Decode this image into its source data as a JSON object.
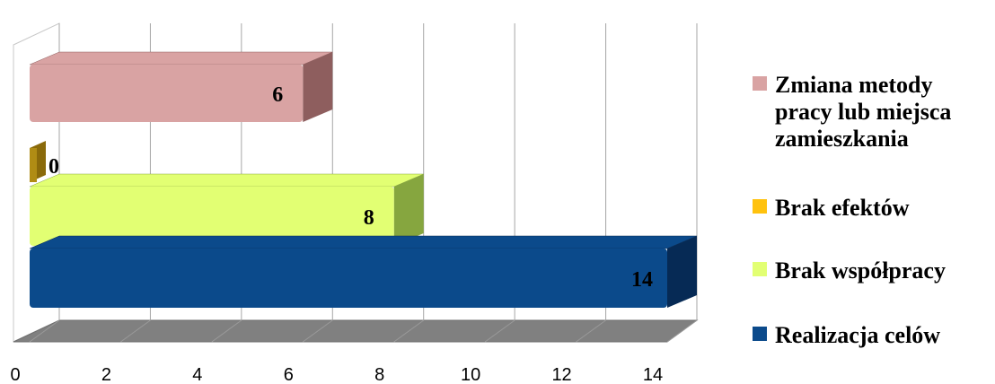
{
  "chart_data": {
    "type": "bar",
    "orientation": "horizontal",
    "style": "3d",
    "title": "",
    "xlabel": "",
    "ylabel": "",
    "xlim": [
      0,
      14
    ],
    "x_ticks": [
      "0",
      "2",
      "4",
      "6",
      "8",
      "10",
      "12",
      "14"
    ],
    "grid": true,
    "legend_position": "right",
    "series": [
      {
        "name": "Realizacja celów",
        "value": 14,
        "label": "14",
        "color": "#0B4A8B",
        "side_color": "#062A55",
        "legend_color": "#0B4A8B"
      },
      {
        "name": "Brak współpracy",
        "value": 8,
        "label": "8",
        "color": "#E2FF73",
        "side_color": "#86A63F",
        "legend_color": "#E2FF73"
      },
      {
        "name": "Brak efektów",
        "value": 0,
        "label": "0",
        "color": "#B08C14",
        "side_color": "#8A6A0A",
        "legend_color": "#FFC20E"
      },
      {
        "name": "Zmiana metody pracy lub miejsca zamieszkania",
        "value": 6,
        "label": "6",
        "color": "#D9A3A3",
        "side_color": "#8E5E5E",
        "legend_color": "#D9A3A3"
      }
    ],
    "legend_lines": {
      "zmiana": [
        "Zmiana metody",
        "pracy lub miejsca",
        "zamieszkania"
      ]
    }
  }
}
